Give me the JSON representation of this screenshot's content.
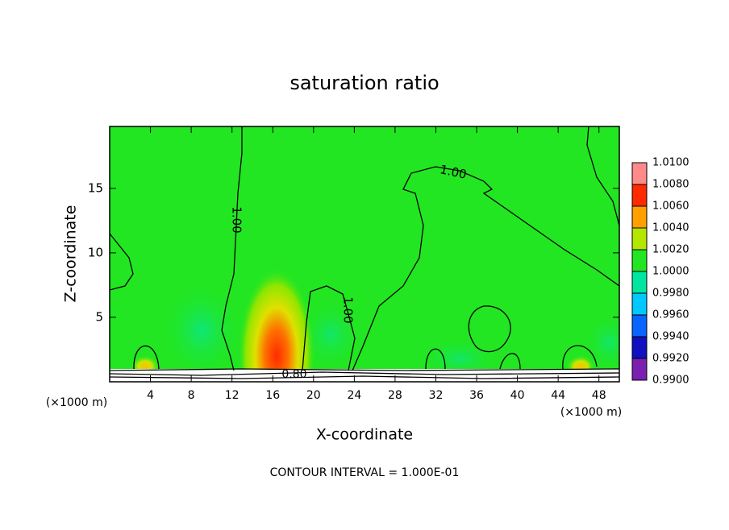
{
  "chart_data": {
    "type": "contour",
    "title": "saturation ratio",
    "x_label": "X-coordinate",
    "y_label": "Z-coordinate",
    "axis_unit": "(×1000 m)",
    "xlim": [
      0,
      50
    ],
    "xticks": [
      4,
      8,
      12,
      16,
      20,
      24,
      28,
      32,
      36,
      40,
      44,
      48
    ],
    "ylim": [
      0,
      19.8
    ],
    "yticks": [
      5,
      10,
      15
    ],
    "colorbar": {
      "levels": [
        {
          "value": 0.99,
          "label": "0.9900"
        },
        {
          "value": 0.992,
          "label": "0.9920"
        },
        {
          "value": 0.994,
          "label": "0.9940"
        },
        {
          "value": 0.996,
          "label": "0.9960"
        },
        {
          "value": 0.998,
          "label": "0.9980"
        },
        {
          "value": 1.0,
          "label": "1.0000"
        },
        {
          "value": 1.002,
          "label": "1.0020"
        },
        {
          "value": 1.004,
          "label": "1.0040"
        },
        {
          "value": 1.006,
          "label": "1.0060"
        },
        {
          "value": 1.008,
          "label": "1.0080"
        },
        {
          "value": 1.01,
          "label": "1.0100"
        }
      ],
      "colors": [
        "#7a1fb0",
        "#1010c0",
        "#0a64ff",
        "#00c8ff",
        "#00e6a0",
        "#22e622",
        "#b4e600",
        "#ffa000",
        "#ff2a00",
        "#ff8a8a"
      ]
    },
    "contour_labels": [
      "1.00",
      "1.00",
      "1.00",
      "0.80"
    ],
    "footer": "CONTOUR INTERVAL = 1.000E-01"
  }
}
